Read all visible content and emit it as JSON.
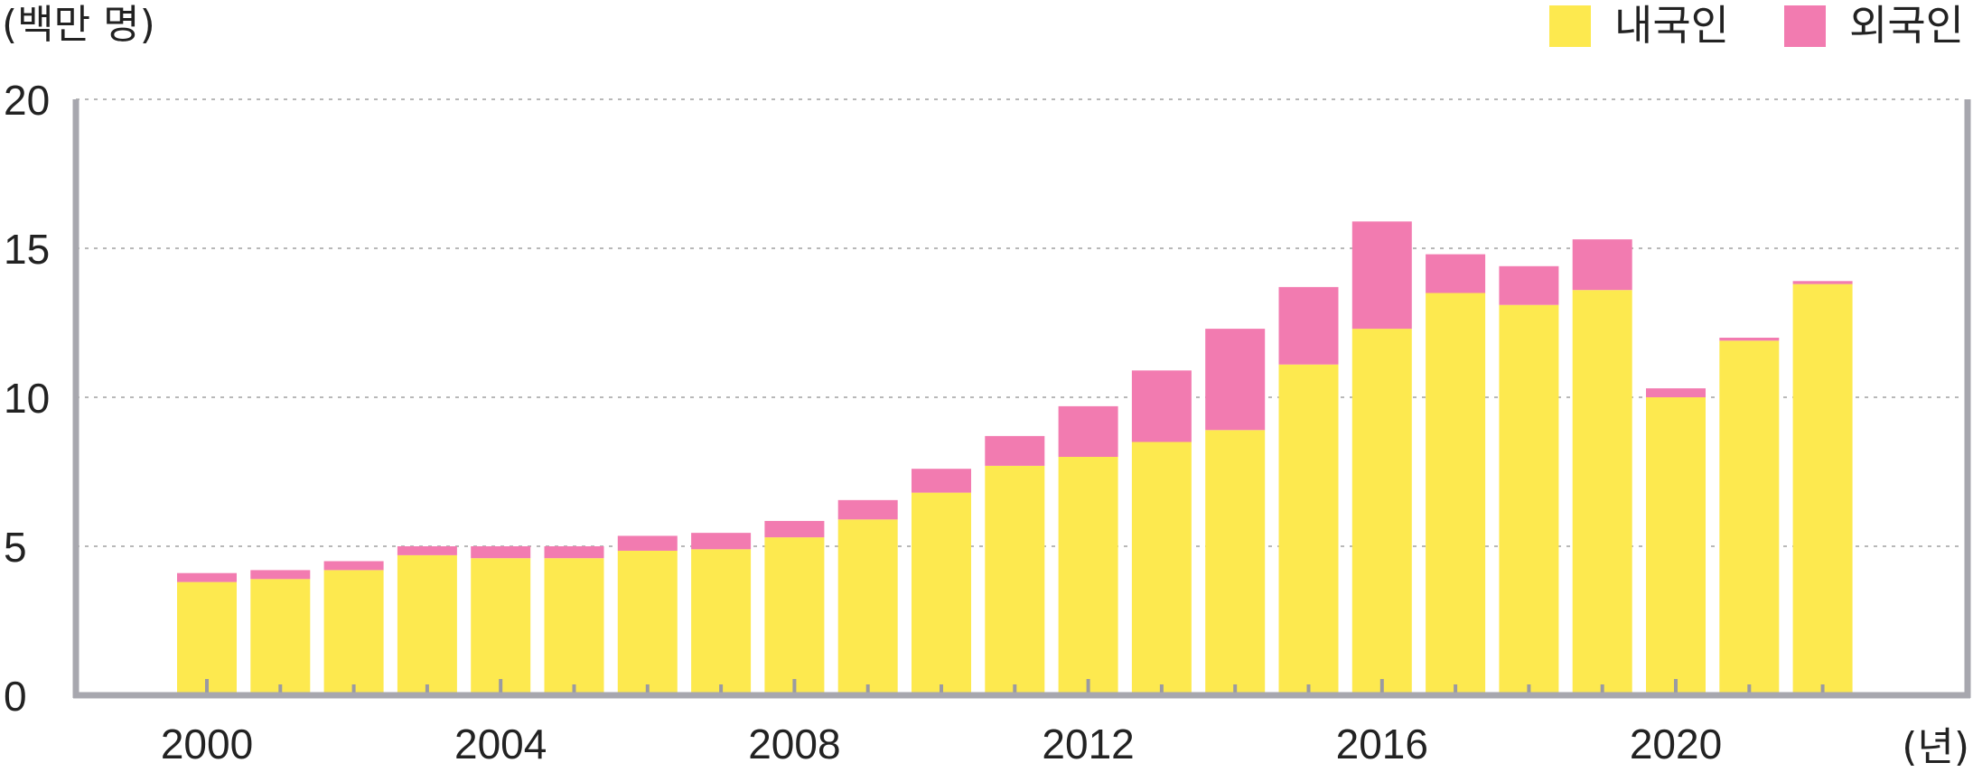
{
  "chart_data": {
    "type": "bar",
    "stacked": true,
    "y_unit_label": "(백만 명)",
    "x_unit_label": "(년)",
    "categories": [
      "2000",
      "2001",
      "2002",
      "2003",
      "2004",
      "2005",
      "2006",
      "2007",
      "2008",
      "2009",
      "2010",
      "2011",
      "2012",
      "2013",
      "2014",
      "2015",
      "2016",
      "2017",
      "2018",
      "2019",
      "2020",
      "2021",
      "2022"
    ],
    "x_tick_labels": [
      "2000",
      "2004",
      "2008",
      "2012",
      "2016",
      "2020"
    ],
    "series": [
      {
        "name": "내국인",
        "color": "#fde94f",
        "values": [
          3.8,
          3.9,
          4.2,
          4.7,
          4.6,
          4.6,
          4.85,
          4.9,
          5.3,
          5.9,
          6.8,
          7.7,
          8.0,
          8.5,
          8.9,
          11.1,
          12.3,
          13.5,
          13.1,
          13.6,
          10.0,
          11.9,
          13.8
        ]
      },
      {
        "name": "외국인",
        "color": "#f27bb0",
        "values": [
          0.3,
          0.3,
          0.3,
          0.3,
          0.4,
          0.4,
          0.5,
          0.55,
          0.55,
          0.65,
          0.8,
          1.0,
          1.7,
          2.4,
          3.4,
          2.6,
          3.6,
          1.3,
          1.3,
          1.7,
          0.3,
          0.1,
          0.1
        ]
      }
    ],
    "ylim": [
      0,
      20
    ],
    "y_ticks": [
      0,
      5,
      10,
      15,
      20
    ],
    "y_tick_labels": [
      "0",
      "5",
      "10",
      "15",
      "20"
    ],
    "grid": true,
    "legend_position": "top-right"
  }
}
